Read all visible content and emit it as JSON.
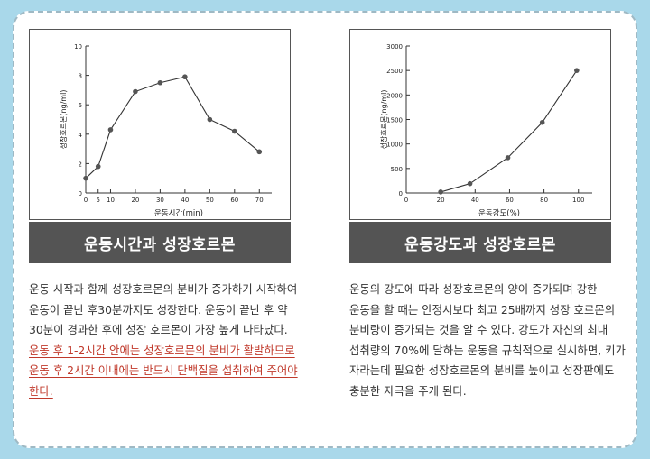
{
  "chart_data": [
    {
      "type": "line",
      "xlabel": "운동시간(min)",
      "ylabel": "성장호르몬(ng/ml)",
      "xlim": [
        0,
        75
      ],
      "ylim": [
        0,
        10
      ],
      "xticks": [
        0,
        5,
        10,
        20,
        30,
        40,
        50,
        60,
        70
      ],
      "yticks": [
        0,
        2,
        4,
        6,
        8,
        10
      ],
      "series": [
        {
          "x": [
            0,
            5,
            10,
            20,
            30,
            40,
            50,
            60,
            70
          ],
          "y": [
            1.0,
            1.8,
            4.3,
            6.9,
            7.5,
            7.9,
            5.0,
            4.2,
            2.8
          ]
        }
      ],
      "grid": false
    },
    {
      "type": "line",
      "xlabel": "운동강도(%)",
      "ylabel": "성장호르몬(ng/ml)",
      "xlim": [
        0,
        108
      ],
      "ylim": [
        0,
        3000
      ],
      "xticks": [
        0,
        20,
        40,
        60,
        80,
        100
      ],
      "yticks": [
        0,
        500,
        1000,
        1500,
        2000,
        2500,
        3000
      ],
      "series": [
        {
          "x": [
            20,
            37,
            59,
            79,
            99
          ],
          "y": [
            20,
            190,
            720,
            1440,
            2500
          ]
        }
      ],
      "grid": false
    }
  ],
  "panels": {
    "left": {
      "title": "운동시간과 성장호르몬",
      "text": "운동 시작과 함께 성장호르몬의 분비가 증가하기 시작하여 운동이 끝난 후30분까지도 성장한다. 운동이 끝난 후 약 30분이 경과한 후에 성장 호르몬이 가장 높게 나타났다.",
      "highlight": "운동 후 1-2시간 안에는 성장호르몬의 분비가 활발하므로 운동 후 2시간 이내에는 반드시 단백질을 섭취하여 주어야 한다."
    },
    "right": {
      "title": "운동강도과 성장호르몬",
      "text": "운동의 강도에 따라 성장호르몬의 양이 증가되며 강한 운동을 할 때는 안정시보다 최고 25배까지 성장 호르몬의 분비량이 증가되는 것을 알 수 있다. 강도가 자신의 최대 섭취량의 70%에 달하는 운동을 규칙적으로 실시하면, 키가 자라는데 필요한 성장호르몬의 분비를 높이고 성장판에도 충분한 자극을 주게 된다."
    }
  }
}
